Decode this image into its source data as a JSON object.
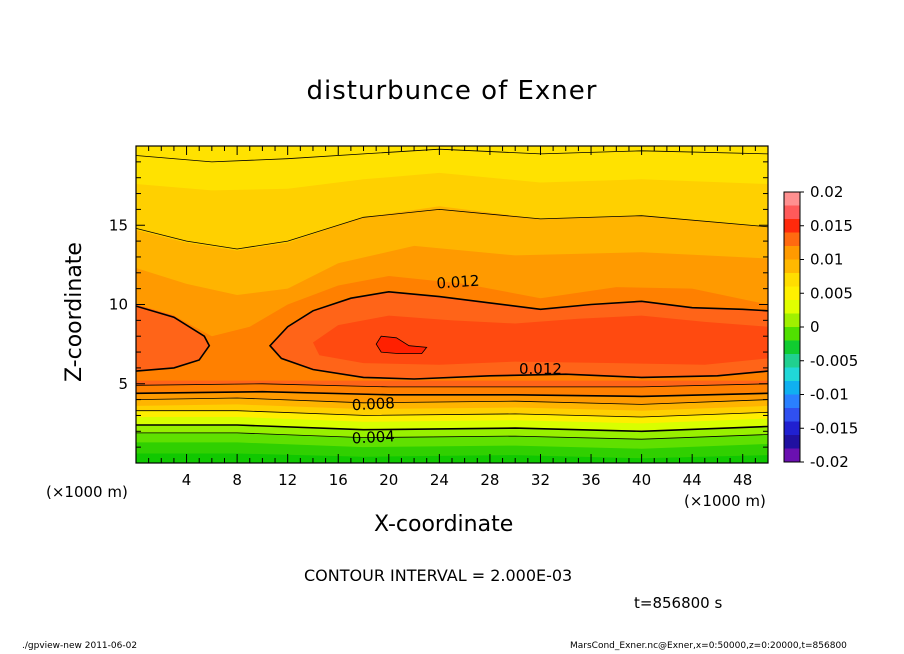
{
  "chart_data": {
    "type": "heatmap",
    "title": "disturbunce of Exner",
    "xlabel": "X-coordinate",
    "ylabel": "Z-coordinate",
    "x_unit": "(×1000 m)",
    "xlim": [
      0,
      50
    ],
    "ylim": [
      0,
      20
    ],
    "x_ticks": [
      4,
      8,
      12,
      16,
      20,
      24,
      28,
      32,
      36,
      40,
      44,
      48
    ],
    "y_ticks": [
      5,
      10,
      15
    ],
    "colorbar": {
      "range": [
        -0.02,
        0.02
      ],
      "labels": [
        "0.02",
        "0.015",
        "0.01",
        "0.005",
        "0",
        "-0.005",
        "-0.01",
        "-0.015",
        "-0.02"
      ],
      "colors": [
        "#ff9090",
        "#ff5a5a",
        "#ff2a0c",
        "#ff6a10",
        "#ff9a00",
        "#ffb800",
        "#ffdd00",
        "#fff000",
        "#e0ff00",
        "#a0f000",
        "#50e000",
        "#10cc30",
        "#20d090",
        "#20d8d8",
        "#10b0f0",
        "#2a80ff",
        "#3050f0",
        "#2020d0",
        "#2010a0",
        "#6a10b0"
      ]
    },
    "contour_labels": [
      "0.012",
      "0.012",
      "0.008",
      "0.004"
    ],
    "contour_interval_text": "CONTOUR INTERVAL = 2.000E-03",
    "time_text": "t=856800 s"
  },
  "footer": {
    "left": "./gpview-new   2011-06-02",
    "right": "MarsCond_Exner.nc@Exner,x=0:50000,z=0:20000,t=856800"
  }
}
